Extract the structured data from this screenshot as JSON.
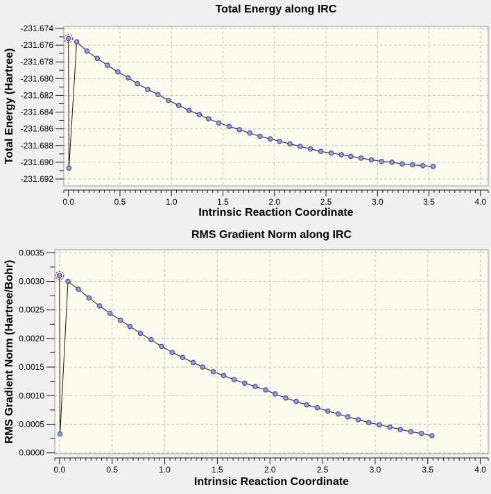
{
  "window": {
    "background": "#f0f0f0"
  },
  "colors": {
    "page_background": "#f0f0f0",
    "plot_background": "#fcfcee",
    "grid": "#c2c2c2",
    "frame": "#9a9a9a",
    "axis": "#1a1a1a",
    "line": "#141414",
    "marker_fill": "#9a9ce2",
    "marker_stroke": "#3b3d9a",
    "selected_ring": "#aa3333",
    "text": "#000000"
  },
  "chart_data": [
    {
      "type": "line",
      "title": "Total Energy along IRC",
      "xlabel": "Intrinsic Reaction Coordinate",
      "ylabel": "Total Energy (Hartree)",
      "xlim": [
        -0.045,
        4.075
      ],
      "ylim": [
        -231.69283,
        -231.67375
      ],
      "grid": true,
      "legend": "none",
      "x_ticks": {
        "values": [
          0,
          0.5,
          1.0,
          1.5,
          2.0,
          2.5,
          3.0,
          3.5,
          4.0
        ],
        "labels": [
          "0.0",
          "0.5",
          "1.0",
          "1.5",
          "2.0",
          "2.5",
          "3.0",
          "3.5",
          "4.0"
        ]
      },
      "x_minor_step": 0.05,
      "y_ticks": {
        "values": [
          -231.674,
          -231.676,
          -231.678,
          -231.68,
          -231.682,
          -231.684,
          -231.686,
          -231.688,
          -231.69,
          -231.692
        ],
        "labels": [
          "-231.674",
          "-231.676",
          "-231.678",
          "-231.680",
          "-231.682",
          "-231.684",
          "-231.686",
          "-231.688",
          "-231.690",
          "-231.692"
        ]
      },
      "highlight_index": 0,
      "series": [
        {
          "name": "Total Energy",
          "x": [
            0.0,
            0.005,
            0.08,
            0.18,
            0.28,
            0.38,
            0.48,
            0.58,
            0.67,
            0.77,
            0.87,
            0.97,
            1.07,
            1.17,
            1.27,
            1.36,
            1.46,
            1.56,
            1.66,
            1.76,
            1.86,
            1.96,
            2.05,
            2.15,
            2.25,
            2.35,
            2.45,
            2.55,
            2.65,
            2.74,
            2.84,
            2.94,
            3.04,
            3.14,
            3.24,
            3.34,
            3.44,
            3.54
          ],
          "y": [
            -231.6752,
            -231.6907,
            -231.6756,
            -231.6767,
            -231.6776,
            -231.6784,
            -231.6792,
            -231.6799,
            -231.6806,
            -231.6813,
            -231.6819,
            -231.6826,
            -231.6832,
            -231.6838,
            -231.6843,
            -231.6848,
            -231.6853,
            -231.6857,
            -231.6861,
            -231.6865,
            -231.6869,
            -231.6872,
            -231.6875,
            -231.6878,
            -231.6881,
            -231.6884,
            -231.6887,
            -231.6889,
            -231.6891,
            -231.6893,
            -231.6895,
            -231.6897,
            -231.6899,
            -231.69,
            -231.6902,
            -231.6903,
            -231.6904,
            -231.6905
          ]
        }
      ]
    },
    {
      "type": "line",
      "title": "RMS Gradient Norm along IRC",
      "xlabel": "Intrinsic Reaction Coordinate",
      "ylabel": "RMS Gradient Norm (Hartree/Bohr)",
      "xlim": [
        -0.045,
        4.075
      ],
      "ylim": [
        -1.6e-05,
        0.003552
      ],
      "grid": true,
      "legend": "none",
      "x_ticks": {
        "values": [
          0,
          0.5,
          1.0,
          1.5,
          2.0,
          2.5,
          3.0,
          3.5,
          4.0
        ],
        "labels": [
          "0.0",
          "0.5",
          "1.0",
          "1.5",
          "2.0",
          "2.5",
          "3.0",
          "3.5",
          "4.0"
        ]
      },
      "x_minor_step": 0.05,
      "y_ticks": {
        "values": [
          0.0035,
          0.003,
          0.0025,
          0.002,
          0.0015,
          0.001,
          0.0005,
          0.0
        ],
        "labels": [
          "0.0035",
          "0.0030",
          "0.0025",
          "0.0020",
          "0.0015",
          "0.0010",
          "0.0005",
          "0.0000"
        ]
      },
      "highlight_index": 0,
      "series": [
        {
          "name": "RMS Gradient Norm",
          "x": [
            0.0,
            0.005,
            0.08,
            0.18,
            0.28,
            0.38,
            0.48,
            0.58,
            0.67,
            0.77,
            0.87,
            0.97,
            1.07,
            1.17,
            1.27,
            1.36,
            1.46,
            1.56,
            1.66,
            1.76,
            1.86,
            1.96,
            2.05,
            2.15,
            2.25,
            2.35,
            2.45,
            2.55,
            2.65,
            2.74,
            2.84,
            2.94,
            3.04,
            3.14,
            3.24,
            3.34,
            3.44,
            3.54
          ],
          "y": [
            0.0031,
            0.00033,
            0.003,
            0.00286,
            0.00271,
            0.00257,
            0.00244,
            0.00232,
            0.00221,
            0.00209,
            0.00198,
            0.00186,
            0.00176,
            0.00167,
            0.00158,
            0.0015,
            0.00142,
            0.00135,
            0.00128,
            0.00122,
            0.00116,
            0.0011,
            0.00103,
            0.00096,
            0.0009,
            0.00084,
            0.00079,
            0.00073,
            0.00068,
            0.00063,
            0.00058,
            0.00053,
            0.00049,
            0.00045,
            0.00041,
            0.00037,
            0.00034,
            0.0003
          ]
        }
      ]
    }
  ]
}
